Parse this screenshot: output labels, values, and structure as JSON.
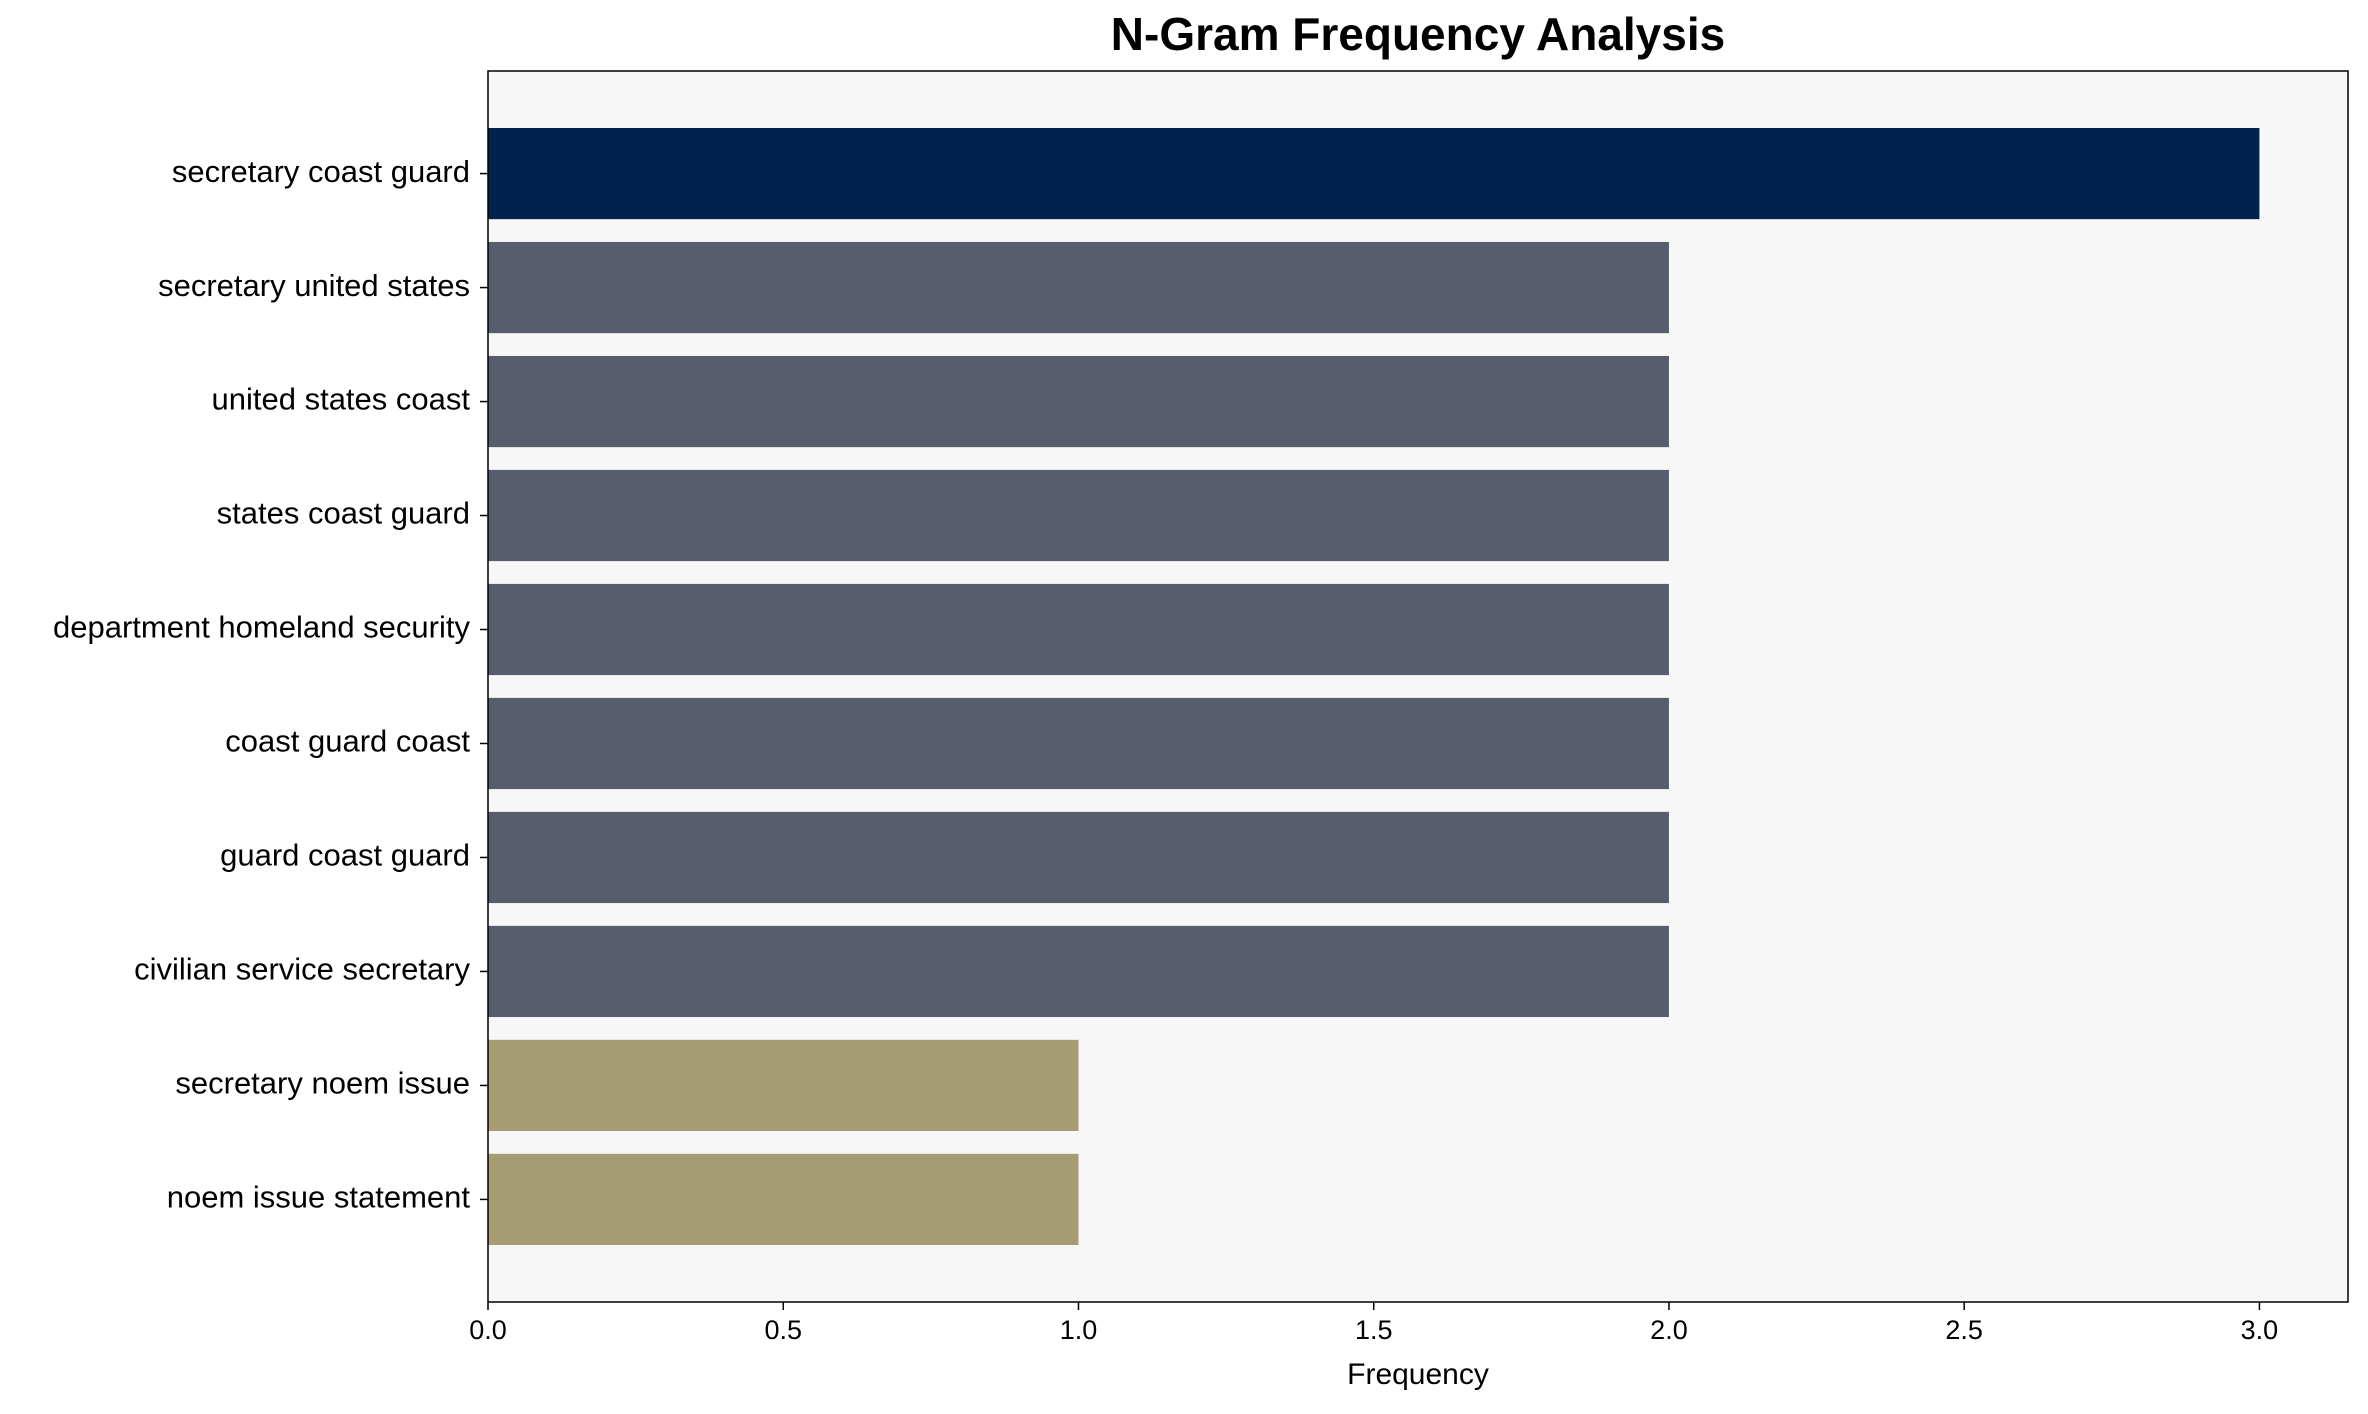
{
  "chart_data": {
    "type": "bar",
    "orientation": "horizontal",
    "title": "N-Gram Frequency Analysis",
    "x_label": "Frequency",
    "categories": [
      "secretary coast guard",
      "secretary united states",
      "united states coast",
      "states coast guard",
      "department homeland security",
      "coast guard coast",
      "guard coast guard",
      "civilian service secretary",
      "secretary noem issue",
      "noem issue statement"
    ],
    "values": [
      3,
      2,
      2,
      2,
      2,
      2,
      2,
      2,
      1,
      1
    ],
    "colors": [
      "#00224e",
      "#575d6d",
      "#575d6d",
      "#575d6d",
      "#575d6d",
      "#575d6d",
      "#575d6d",
      "#575d6d",
      "#a69d75",
      "#a69d75"
    ],
    "xlim": [
      0,
      3.15
    ],
    "xticks": [
      {
        "value": 0,
        "label": "0.0"
      },
      {
        "value": 0.5,
        "label": "0.5"
      },
      {
        "value": 1,
        "label": "1.0"
      },
      {
        "value": 1.5,
        "label": "1.5"
      },
      {
        "value": 2,
        "label": "2.0"
      },
      {
        "value": 2.5,
        "label": "2.5"
      },
      {
        "value": 3,
        "label": "3.0"
      }
    ],
    "grid": false
  }
}
